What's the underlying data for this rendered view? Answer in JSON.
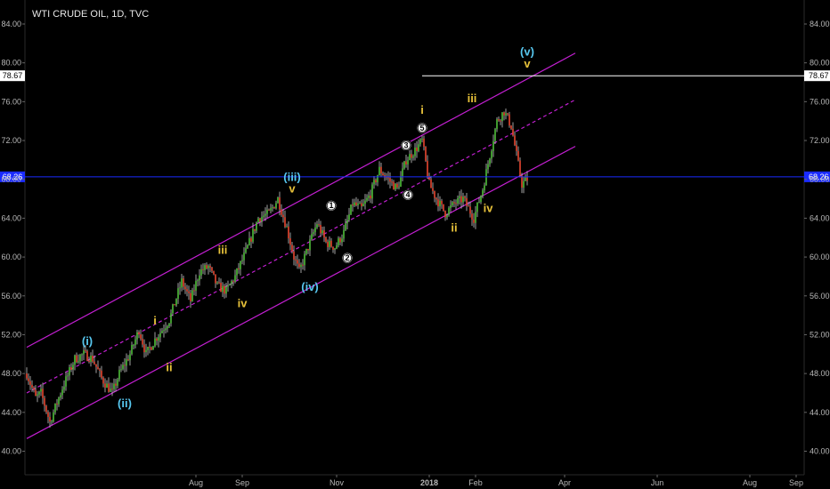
{
  "header": {
    "symbol": "WTI CRUDE OIL, 1D, TVC"
  },
  "chart_data": {
    "type": "candlestick",
    "title": "WTI CRUDE OIL, 1D, TVC",
    "y_ticks": [
      "40.00",
      "44.00",
      "48.00",
      "52.00",
      "56.00",
      "60.00",
      "64.00",
      "68.00",
      "72.00",
      "76.00",
      "80.00",
      "84.00"
    ],
    "ylim": [
      38.5,
      86.5
    ],
    "x_labels": [
      {
        "label": "Aug",
        "t": 95
      },
      {
        "label": "Sep",
        "t": 121
      },
      {
        "label": "Nov",
        "t": 174
      },
      {
        "label": "2018",
        "t": 226
      },
      {
        "label": "Feb",
        "t": 252
      },
      {
        "label": "Apr",
        "t": 302
      },
      {
        "label": "Jun",
        "t": 354
      },
      {
        "label": "Aug",
        "t": 406
      },
      {
        "label": "Sep",
        "t": 432
      }
    ],
    "price_path": [
      [
        0,
        48.0
      ],
      [
        5,
        45.5
      ],
      [
        8,
        46.0
      ],
      [
        13,
        43.0
      ],
      [
        20,
        46.5
      ],
      [
        27,
        49.5
      ],
      [
        32,
        50.0
      ],
      [
        37,
        49.5
      ],
      [
        42,
        47.5
      ],
      [
        48,
        46.0
      ],
      [
        52,
        48.0
      ],
      [
        58,
        50.0
      ],
      [
        63,
        52.5
      ],
      [
        67,
        50.0
      ],
      [
        72,
        51.5
      ],
      [
        80,
        53.5
      ],
      [
        87,
        57.5
      ],
      [
        92,
        55.5
      ],
      [
        97,
        58.5
      ],
      [
        102,
        59.0
      ],
      [
        107,
        57.0
      ],
      [
        112,
        56.5
      ],
      [
        117,
        58.0
      ],
      [
        123,
        60.5
      ],
      [
        130,
        64.0
      ],
      [
        136,
        64.5
      ],
      [
        141,
        66.0
      ],
      [
        146,
        63.0
      ],
      [
        150,
        60.0
      ],
      [
        153,
        58.5
      ],
      [
        158,
        61.0
      ],
      [
        163,
        63.5
      ],
      [
        168,
        61.5
      ],
      [
        173,
        61.0
      ],
      [
        178,
        62.5
      ],
      [
        183,
        65.5
      ],
      [
        188,
        65.0
      ],
      [
        193,
        66.5
      ],
      [
        198,
        69.0
      ],
      [
        203,
        68.0
      ],
      [
        208,
        67.0
      ],
      [
        213,
        70.0
      ],
      [
        218,
        71.0
      ],
      [
        222,
        72.0
      ],
      [
        226,
        67.5
      ],
      [
        230,
        66.0
      ],
      [
        235,
        64.5
      ],
      [
        240,
        65.5
      ],
      [
        245,
        66.0
      ],
      [
        251,
        64.0
      ],
      [
        256,
        67.0
      ],
      [
        260,
        70.5
      ],
      [
        264,
        74.0
      ],
      [
        268,
        75.0
      ],
      [
        272,
        73.5
      ],
      [
        276,
        69.5
      ],
      [
        278,
        67.5
      ],
      [
        281,
        68.0
      ]
    ],
    "series": [
      {
        "name": "channel_upper",
        "points": [
          [
            0,
            50.7
          ],
          [
            308,
            81.0
          ]
        ]
      },
      {
        "name": "channel_mid",
        "points": [
          [
            0,
            46.0
          ],
          [
            308,
            76.2
          ]
        ]
      },
      {
        "name": "channel_lower",
        "points": [
          [
            0,
            41.3
          ],
          [
            308,
            71.4
          ]
        ]
      }
    ],
    "lines": {
      "current_price": {
        "value": 68.26,
        "label": "68.26",
        "color": "#1a2bff"
      },
      "target": {
        "value": 78.67,
        "label": "78.67",
        "t_start": 222,
        "color": "#ffffff"
      }
    },
    "wave_labels": [
      {
        "text": "(i)",
        "t": 34,
        "y": 51.3,
        "color": "cyan"
      },
      {
        "text": "(ii)",
        "t": 55,
        "y": 44.9,
        "color": "cyan"
      },
      {
        "text": "i",
        "t": 72,
        "y": 53.4,
        "color": "yellow"
      },
      {
        "text": "ii",
        "t": 80,
        "y": 48.6,
        "color": "yellow"
      },
      {
        "text": "iii",
        "t": 110,
        "y": 60.7,
        "color": "yellow"
      },
      {
        "text": "iv",
        "t": 121,
        "y": 55.2,
        "color": "yellow"
      },
      {
        "text": "(iii)",
        "t": 149,
        "y": 68.2,
        "color": "cyan"
      },
      {
        "text": "v",
        "t": 149,
        "y": 67.0,
        "color": "yellow"
      },
      {
        "text": "(iv)",
        "t": 159,
        "y": 56.9,
        "color": "cyan"
      },
      {
        "text": "1",
        "t": 171,
        "y": 65.3,
        "color": "badge"
      },
      {
        "text": "2",
        "t": 180,
        "y": 59.9,
        "color": "badge"
      },
      {
        "text": "3",
        "t": 213,
        "y": 71.5,
        "color": "badge"
      },
      {
        "text": "4",
        "t": 214,
        "y": 66.4,
        "color": "badge"
      },
      {
        "text": "5",
        "t": 222,
        "y": 73.3,
        "color": "badge"
      },
      {
        "text": "i",
        "t": 222,
        "y": 75.1,
        "color": "yellow"
      },
      {
        "text": "ii",
        "t": 240,
        "y": 63.0,
        "color": "yellow"
      },
      {
        "text": "iii",
        "t": 250,
        "y": 76.3,
        "color": "yellow"
      },
      {
        "text": "iv",
        "t": 259,
        "y": 65.0,
        "color": "yellow"
      },
      {
        "text": "(v)",
        "t": 281,
        "y": 81.1,
        "color": "cyan"
      },
      {
        "text": "v",
        "t": 281,
        "y": 79.9,
        "color": "yellow"
      }
    ]
  }
}
